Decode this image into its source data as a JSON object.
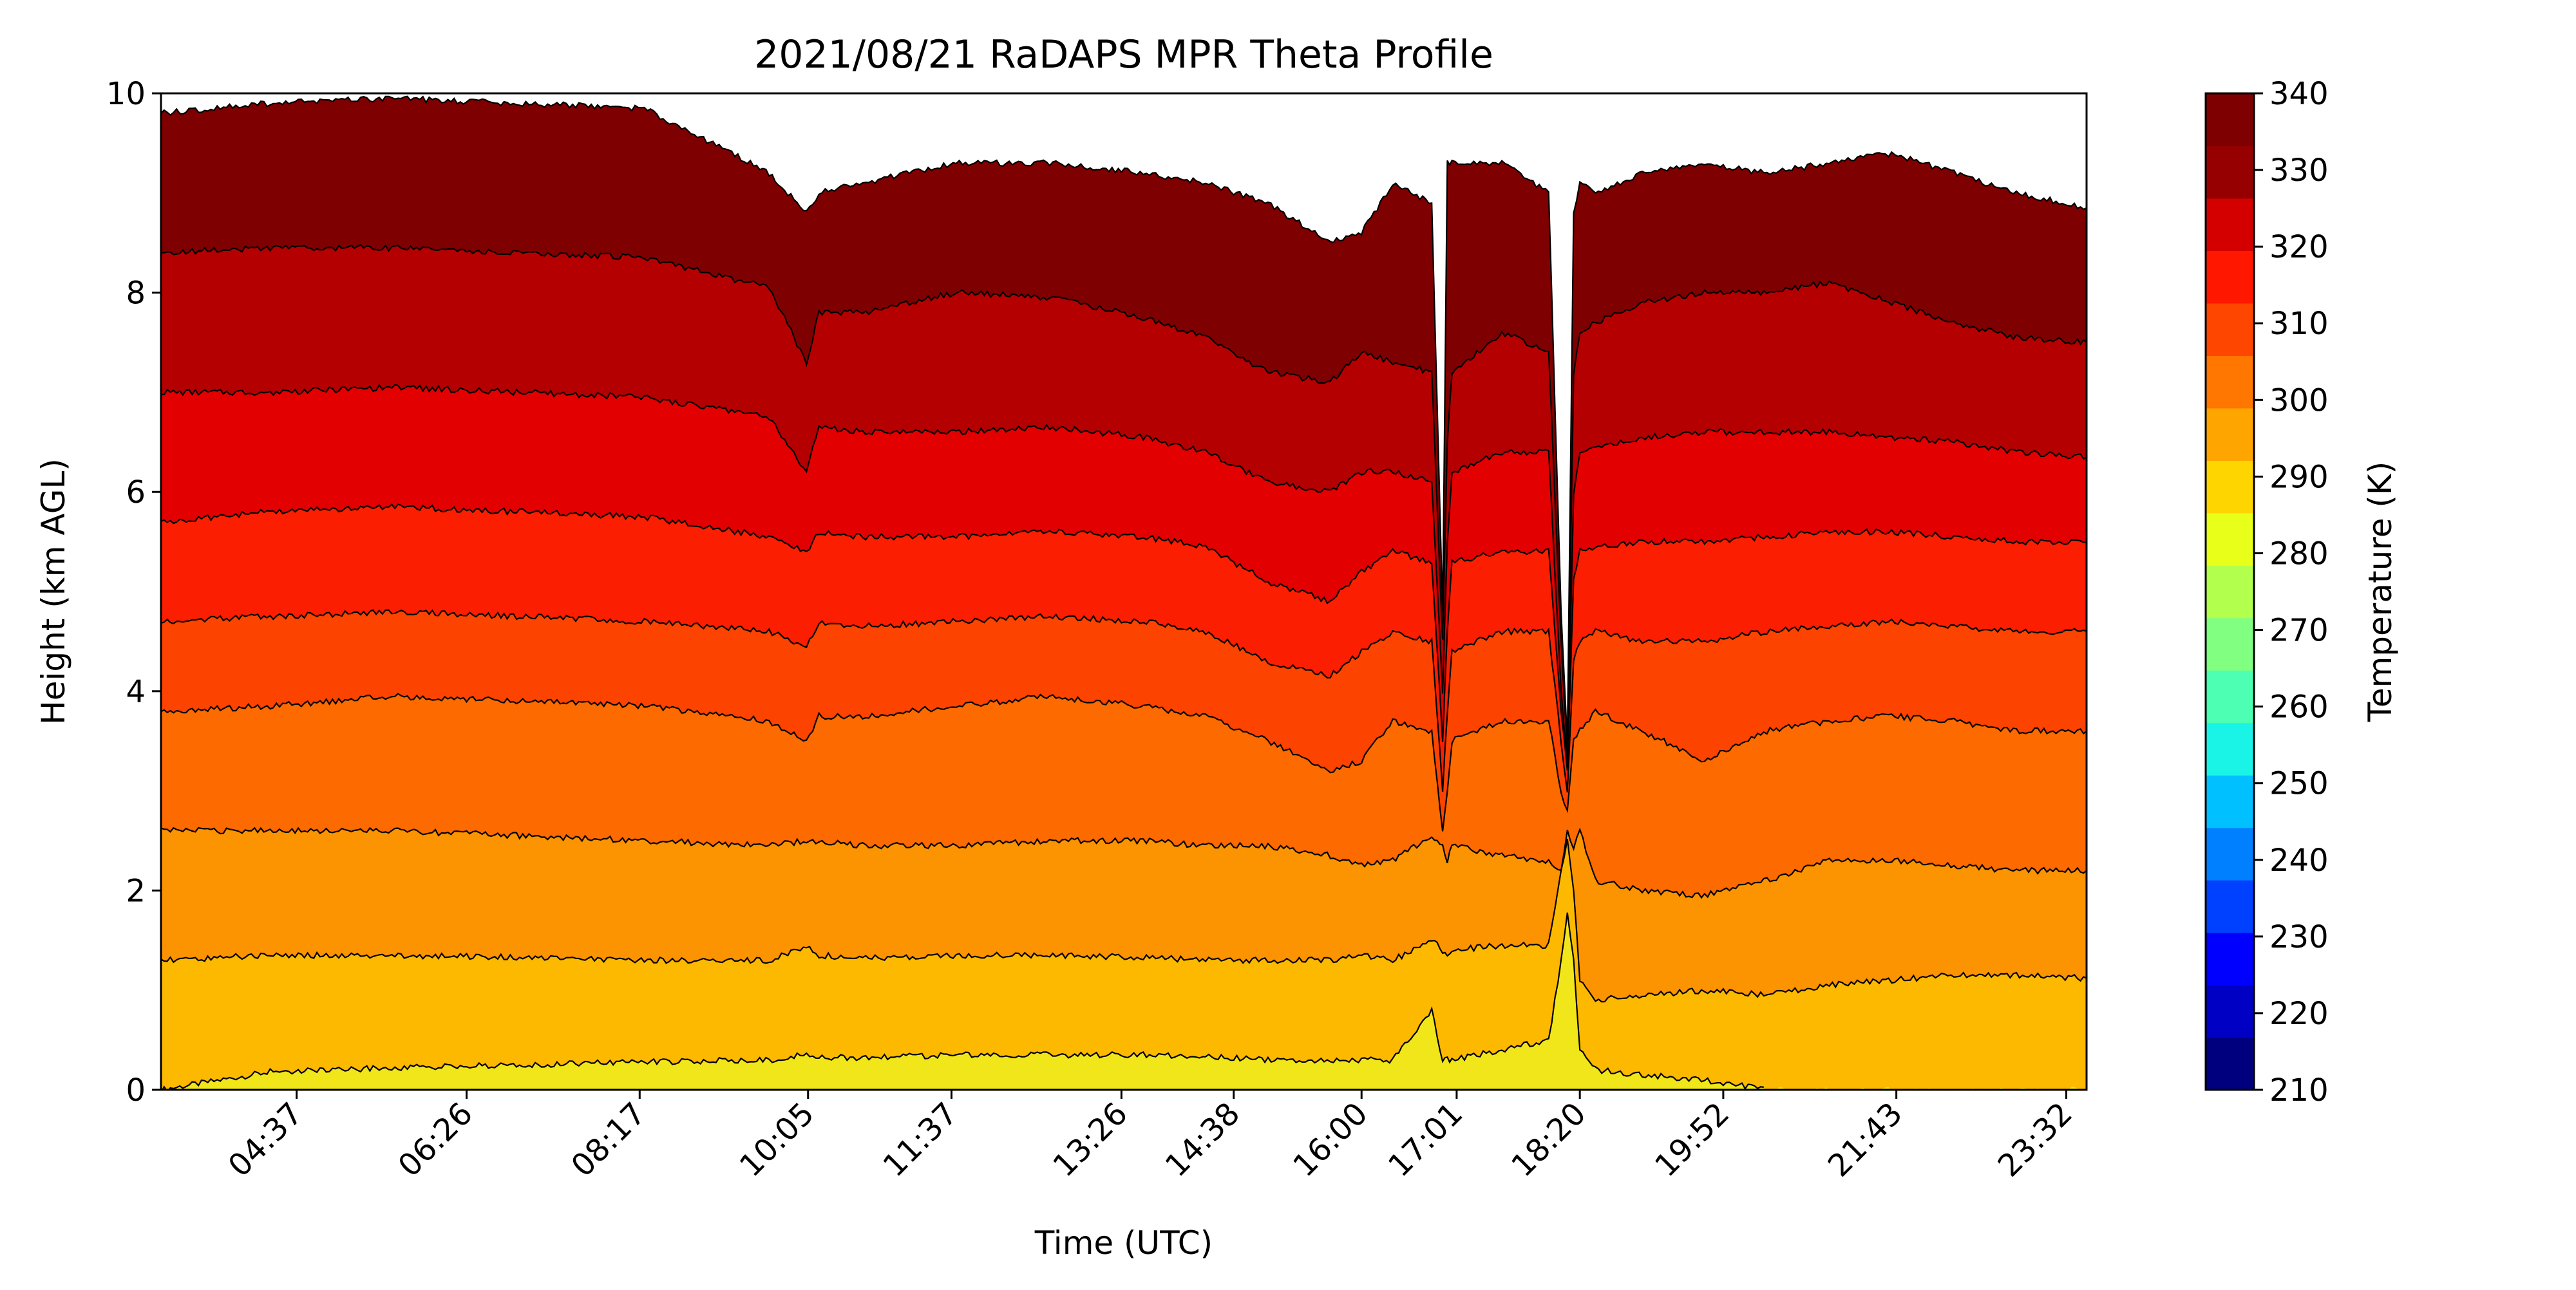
{
  "chart_data": {
    "type": "heatmap",
    "subtype": "filled-contour",
    "title": "2021/08/21 RaDAPS MPR Theta Profile",
    "xlabel": "Time (UTC)",
    "ylabel": "Height (km AGL)",
    "colorbar_label": "Temperature (K)",
    "x_tick_labels": [
      "04:37",
      "06:26",
      "08:17",
      "10:05",
      "11:37",
      "13:26",
      "14:38",
      "16:00",
      "17:01",
      "18:20",
      "19:52",
      "21:43",
      "23:32"
    ],
    "x_tick_minutes": [
      277,
      386,
      497,
      605,
      697,
      806,
      878,
      960,
      1021,
      1100,
      1192,
      1303,
      1412
    ],
    "x_range_minutes": [
      190,
      1425
    ],
    "ylim": [
      0,
      10
    ],
    "y_ticks": [
      0,
      2,
      4,
      6,
      8,
      10
    ],
    "colorbar_range": [
      210,
      340
    ],
    "colorbar_ticks": [
      210,
      220,
      230,
      240,
      250,
      260,
      270,
      280,
      290,
      300,
      310,
      320,
      330,
      340
    ],
    "colorbar_colors": [
      "#00007f",
      "#0000c4",
      "#0000ff",
      "#0040ff",
      "#0080ff",
      "#00c0ff",
      "#19f4e7",
      "#4dffb3",
      "#80ff80",
      "#b3ff4d",
      "#e7ff19",
      "#ffd500",
      "#ffa500",
      "#ff7600",
      "#ff4600",
      "#ff1700",
      "#d40000",
      "#960000",
      "#7f0000"
    ],
    "contour_levels_K": [
      300,
      305,
      310,
      315,
      320,
      325,
      330,
      335
    ],
    "band_colors": {
      "295-300": "#f0e61a",
      "300-305": "#fcb900",
      "305-310": "#fc9300",
      "310-315": "#fc6a00",
      "315-320": "#fc4300",
      "320-325": "#fc1e00",
      "325-330": "#e20000",
      "330-335": "#b40000",
      "335-340": "#7f0000"
    },
    "contours_km": {
      "x_minutes": [
        190,
        260,
        340,
        420,
        500,
        580,
        604,
        612,
        640,
        700,
        760,
        820,
        860,
        900,
        940,
        960,
        980,
        1005,
        1012,
        1015,
        1018,
        1050,
        1080,
        1088,
        1092,
        1096,
        1100,
        1110,
        1140,
        1180,
        1220,
        1260,
        1300,
        1340,
        1380,
        1425
      ],
      "levels": {
        "300": [
          0.0,
          0.18,
          0.22,
          0.25,
          0.28,
          0.3,
          0.35,
          0.33,
          0.32,
          0.35,
          0.35,
          0.35,
          0.33,
          0.3,
          0.3,
          0.3,
          0.3,
          0.8,
          0.3,
          0.3,
          0.3,
          0.4,
          0.5,
          1.3,
          1.8,
          1.3,
          0.4,
          0.2,
          0.15,
          0.1,
          0.0,
          null,
          null,
          null,
          null,
          null
        ],
        "305": [
          1.3,
          1.35,
          1.35,
          1.33,
          1.3,
          1.3,
          1.45,
          1.35,
          1.32,
          1.35,
          1.35,
          1.33,
          1.3,
          1.3,
          1.3,
          1.35,
          1.3,
          1.5,
          1.4,
          1.35,
          1.4,
          1.45,
          1.45,
          2.2,
          2.5,
          2.0,
          1.1,
          0.9,
          0.95,
          1.0,
          0.95,
          1.05,
          1.1,
          1.15,
          1.15,
          1.12
        ],
        "310": [
          2.6,
          2.6,
          2.6,
          2.55,
          2.5,
          2.45,
          2.5,
          2.5,
          2.45,
          2.45,
          2.5,
          2.5,
          2.45,
          2.45,
          2.35,
          2.25,
          2.3,
          2.55,
          2.45,
          2.3,
          2.45,
          2.35,
          2.3,
          2.2,
          2.6,
          2.4,
          2.6,
          2.1,
          2.0,
          1.95,
          2.1,
          2.3,
          2.3,
          2.25,
          2.2,
          2.2
        ],
        "315": [
          3.8,
          3.85,
          3.95,
          3.9,
          3.85,
          3.7,
          3.5,
          3.75,
          3.75,
          3.85,
          3.95,
          3.85,
          3.75,
          3.5,
          3.2,
          3.3,
          3.7,
          3.6,
          2.6,
          3.0,
          3.5,
          3.7,
          3.7,
          3.0,
          2.8,
          3.5,
          3.6,
          3.8,
          3.6,
          3.3,
          3.6,
          3.7,
          3.75,
          3.7,
          3.6,
          3.6
        ],
        "320": [
          4.7,
          4.75,
          4.8,
          4.75,
          4.7,
          4.6,
          4.45,
          4.7,
          4.65,
          4.7,
          4.75,
          4.7,
          4.6,
          4.3,
          4.15,
          4.4,
          4.6,
          4.5,
          3.0,
          3.8,
          4.4,
          4.6,
          4.6,
          3.5,
          3.0,
          4.3,
          4.5,
          4.6,
          4.5,
          4.5,
          4.6,
          4.65,
          4.7,
          4.65,
          4.6,
          4.6
        ],
        "325": [
          5.7,
          5.8,
          5.85,
          5.8,
          5.75,
          5.55,
          5.4,
          5.6,
          5.55,
          5.55,
          5.6,
          5.55,
          5.45,
          5.1,
          4.9,
          5.2,
          5.4,
          5.3,
          3.5,
          4.6,
          5.3,
          5.4,
          5.4,
          3.8,
          3.2,
          5.1,
          5.4,
          5.45,
          5.5,
          5.5,
          5.55,
          5.6,
          5.6,
          5.55,
          5.5,
          5.5
        ],
        "330": [
          7.0,
          7.0,
          7.05,
          7.0,
          6.95,
          6.75,
          6.2,
          6.65,
          6.6,
          6.6,
          6.65,
          6.55,
          6.4,
          6.1,
          6.0,
          6.2,
          6.2,
          6.1,
          4.0,
          5.5,
          6.2,
          6.4,
          6.4,
          4.0,
          3.3,
          6.0,
          6.4,
          6.45,
          6.55,
          6.6,
          6.6,
          6.6,
          6.55,
          6.5,
          6.4,
          6.35
        ],
        "335": [
          8.4,
          8.45,
          8.45,
          8.4,
          8.35,
          8.05,
          7.3,
          7.8,
          7.8,
          8.0,
          7.95,
          7.75,
          7.55,
          7.2,
          7.1,
          7.4,
          7.3,
          7.2,
          4.5,
          6.5,
          7.2,
          7.6,
          7.4,
          4.5,
          3.4,
          7.2,
          7.6,
          7.7,
          7.9,
          8.0,
          8.0,
          8.1,
          7.9,
          7.7,
          7.55,
          7.5
        ]
      }
    },
    "top_km": [
      9.8,
      9.9,
      9.95,
      9.9,
      9.85,
      9.2,
      8.8,
      9.0,
      9.1,
      9.3,
      9.3,
      9.2,
      9.1,
      8.9,
      8.5,
      8.6,
      9.1,
      8.9,
      4.8,
      9.3,
      9.3,
      9.3,
      9.0,
      4.8,
      3.5,
      8.8,
      9.1,
      9.0,
      9.2,
      9.3,
      9.2,
      9.3,
      9.4,
      9.2,
      9.0,
      8.85
    ]
  }
}
